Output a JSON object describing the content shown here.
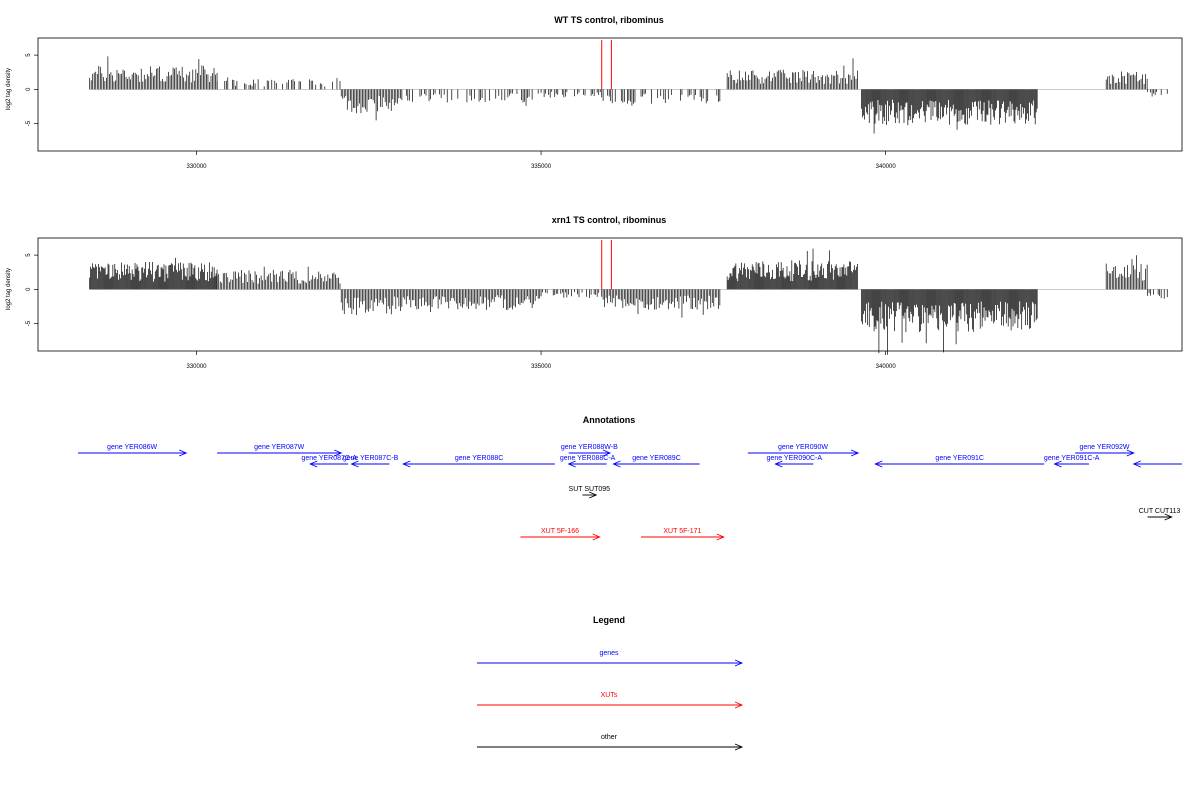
{
  "chart_data": [
    {
      "type": "bar",
      "title": "WT TS control, ribominus",
      "ylabel": "log2 tag density",
      "xlabel": "",
      "xlim": [
        327700,
        344300
      ],
      "ylim": [
        -9,
        7.5
      ],
      "x_ticks": [
        330000,
        335000,
        340000
      ],
      "x_tick_labels": [
        "330000",
        "335000",
        "340000"
      ],
      "y_ticks": [
        -5,
        0,
        5
      ],
      "y_tick_labels": [
        "-5",
        "0",
        "5"
      ],
      "grid": false,
      "coverage_regions": [
        {
          "start": 328450,
          "end": 330300,
          "direction": "up",
          "level": 2.8
        },
        {
          "start": 330300,
          "end": 332100,
          "direction": "up",
          "level": 1.2
        },
        {
          "start": 332100,
          "end": 333000,
          "direction": "down",
          "level": 2.8
        },
        {
          "start": 333000,
          "end": 335000,
          "direction": "down",
          "level": 1.6
        },
        {
          "start": 335000,
          "end": 335900,
          "direction": "down",
          "level": 1.0
        },
        {
          "start": 335900,
          "end": 337600,
          "direction": "down",
          "level": 1.7
        },
        {
          "start": 337700,
          "end": 339600,
          "direction": "up",
          "level": 2.3
        },
        {
          "start": 339650,
          "end": 342200,
          "direction": "down",
          "level": 4.2
        },
        {
          "start": 343200,
          "end": 343800,
          "direction": "up",
          "level": 2.2
        },
        {
          "start": 343800,
          "end": 344100,
          "direction": "down",
          "level": 1.0
        }
      ],
      "marker_lines": [
        {
          "x": 335880,
          "y_top": 7.2,
          "color": "#ff0000"
        },
        {
          "x": 336020,
          "y_top": 7.2,
          "color": "#ff0000"
        }
      ]
    },
    {
      "type": "bar",
      "title": "xrn1 TS control, ribominus",
      "ylabel": "log2 tag density",
      "xlabel": "",
      "xlim": [
        327700,
        344300
      ],
      "ylim": [
        -9,
        7.5
      ],
      "x_ticks": [
        330000,
        335000,
        340000
      ],
      "x_tick_labels": [
        "330000",
        "335000",
        "340000"
      ],
      "y_ticks": [
        -5,
        0,
        5
      ],
      "y_tick_labels": [
        "-5",
        "0",
        "5"
      ],
      "grid": false,
      "coverage_regions": [
        {
          "start": 328450,
          "end": 330300,
          "direction": "up",
          "level": 3.2
        },
        {
          "start": 330300,
          "end": 332100,
          "direction": "up",
          "level": 2.3
        },
        {
          "start": 332100,
          "end": 333000,
          "direction": "down",
          "level": 3.0
        },
        {
          "start": 333000,
          "end": 335000,
          "direction": "down",
          "level": 2.4
        },
        {
          "start": 335000,
          "end": 335900,
          "direction": "down",
          "level": 1.0
        },
        {
          "start": 335900,
          "end": 337600,
          "direction": "down",
          "level": 2.4
        },
        {
          "start": 337700,
          "end": 339600,
          "direction": "up",
          "level": 3.4
        },
        {
          "start": 339650,
          "end": 342200,
          "direction": "down",
          "level": 5.0
        },
        {
          "start": 343200,
          "end": 343800,
          "direction": "up",
          "level": 3.0
        },
        {
          "start": 343800,
          "end": 344100,
          "direction": "down",
          "level": 1.5
        }
      ],
      "marker_lines": [
        {
          "x": 335880,
          "y_top": 7.2,
          "color": "#ff0000"
        },
        {
          "x": 336020,
          "y_top": 7.2,
          "color": "#ff0000"
        }
      ]
    }
  ],
  "annotations": {
    "title": "Annotations",
    "xlim": [
      327700,
      344300
    ],
    "colors": {
      "gene": "#0000ff",
      "XUT": "#ff0000",
      "other": "#000000"
    },
    "features": [
      {
        "label": "gene YER086W",
        "kind": "gene",
        "start": 328100,
        "end": 329850,
        "strand": "+",
        "row": 0
      },
      {
        "label": "gene YER087W",
        "kind": "gene",
        "start": 330300,
        "end": 332100,
        "strand": "+",
        "row": 0
      },
      {
        "label": "gene YER087C-A",
        "kind": "gene",
        "start": 331650,
        "end": 332200,
        "strand": "-",
        "row": 1
      },
      {
        "label": "gene YER087C-B",
        "kind": "gene",
        "start": 332250,
        "end": 332800,
        "strand": "-",
        "row": 1
      },
      {
        "label": "gene YER088C",
        "kind": "gene",
        "start": 333000,
        "end": 335200,
        "strand": "-",
        "row": 1
      },
      {
        "label": "gene YER088W-B",
        "kind": "gene",
        "start": 335400,
        "end": 336000,
        "strand": "+",
        "row": 0
      },
      {
        "label": "gene YER088C-A",
        "kind": "gene",
        "start": 335400,
        "end": 335950,
        "strand": "-",
        "row": 1
      },
      {
        "label": "gene YER089C",
        "kind": "gene",
        "start": 336050,
        "end": 337300,
        "strand": "-",
        "row": 1
      },
      {
        "label": "gene YER090W",
        "kind": "gene",
        "start": 338000,
        "end": 339600,
        "strand": "+",
        "row": 0
      },
      {
        "label": "gene YER090C-A",
        "kind": "gene",
        "start": 338400,
        "end": 338950,
        "strand": "-",
        "row": 1
      },
      {
        "label": "gene YER091C",
        "kind": "gene",
        "start": 339850,
        "end": 342300,
        "strand": "-",
        "row": 1
      },
      {
        "label": "gene YER091C-A",
        "kind": "gene",
        "start": 342450,
        "end": 342950,
        "strand": "-",
        "row": 1
      },
      {
        "label": "gene YER092W",
        "kind": "gene",
        "start": 342750,
        "end": 343600,
        "strand": "+",
        "row": 0
      },
      {
        "label": "",
        "kind": "gene",
        "start": 343600,
        "end": 344300,
        "strand": "-",
        "row": 1
      },
      {
        "label": "SUT SUT095",
        "kind": "other",
        "start": 335600,
        "end": 335800,
        "strand": "+",
        "row": 2
      },
      {
        "label": "CUT CUT113",
        "kind": "other",
        "start": 343800,
        "end": 344150,
        "strand": "+",
        "row": 3
      },
      {
        "label": "XUT 5F-166",
        "kind": "XUT",
        "start": 334700,
        "end": 335850,
        "strand": "+",
        "row": 4
      },
      {
        "label": "XUT 5F-171",
        "kind": "XUT",
        "start": 336450,
        "end": 337650,
        "strand": "+",
        "row": 4
      }
    ]
  },
  "legend": {
    "title": "Legend",
    "items": [
      {
        "label": "genes",
        "color": "#0000ff"
      },
      {
        "label": "XUTs",
        "color": "#ff0000"
      },
      {
        "label": "other",
        "color": "#000000"
      }
    ]
  }
}
